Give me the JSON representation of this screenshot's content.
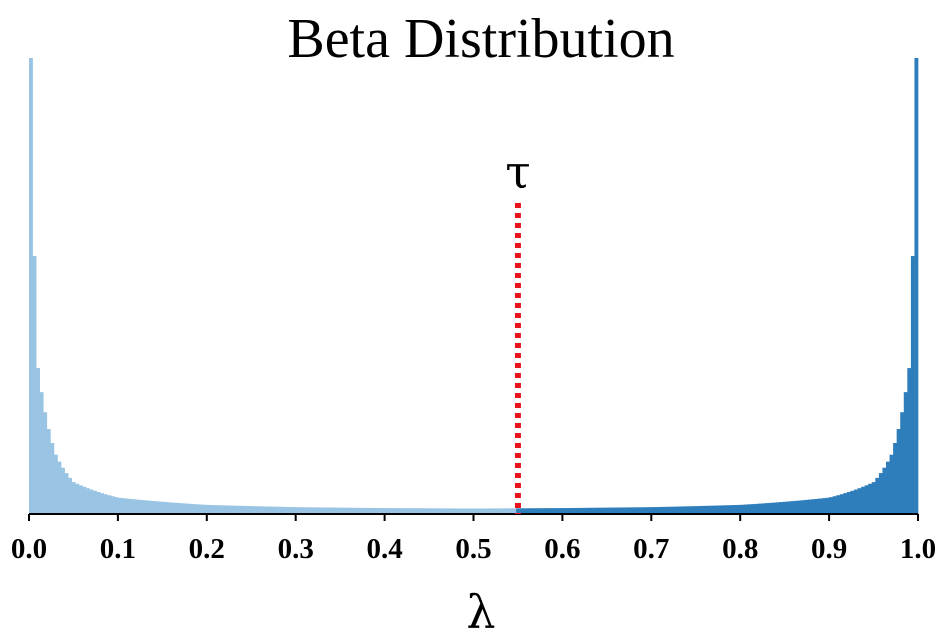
{
  "chart_data": {
    "type": "bar",
    "title": "Beta Distribution",
    "xlabel": "λ",
    "ylabel": "",
    "xlim": [
      0.0,
      1.0
    ],
    "x_ticks": [
      "0.0",
      "0.1",
      "0.2",
      "0.3",
      "0.4",
      "0.5",
      "0.6",
      "0.7",
      "0.8",
      "0.9",
      "1.0"
    ],
    "y_ticks_visible": false,
    "grid": false,
    "threshold": {
      "label": "τ",
      "value": 0.55,
      "color": "#e8141c",
      "style": "dotted"
    },
    "colors": {
      "below_threshold": "#9ac4e3",
      "above_threshold": "#2f7ebc"
    },
    "histogram": {
      "bins": 250,
      "distribution_shape": "U-shaped beta, α = β ≈ 0.3",
      "relative_density_samples": [
        {
          "x": 0.002,
          "y": 1.0
        },
        {
          "x": 0.01,
          "y": 0.32
        },
        {
          "x": 0.03,
          "y": 0.13
        },
        {
          "x": 0.05,
          "y": 0.07
        },
        {
          "x": 0.1,
          "y": 0.036
        },
        {
          "x": 0.2,
          "y": 0.02
        },
        {
          "x": 0.3,
          "y": 0.015
        },
        {
          "x": 0.4,
          "y": 0.013
        },
        {
          "x": 0.5,
          "y": 0.012
        },
        {
          "x": 0.6,
          "y": 0.013
        },
        {
          "x": 0.7,
          "y": 0.015
        },
        {
          "x": 0.8,
          "y": 0.02
        },
        {
          "x": 0.9,
          "y": 0.036
        },
        {
          "x": 0.95,
          "y": 0.07
        },
        {
          "x": 0.97,
          "y": 0.13
        },
        {
          "x": 0.99,
          "y": 0.32
        },
        {
          "x": 0.998,
          "y": 1.0
        }
      ]
    }
  }
}
